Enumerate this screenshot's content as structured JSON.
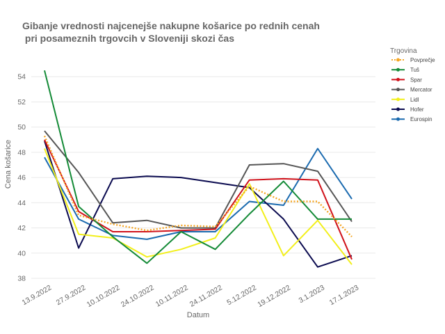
{
  "chart_data": {
    "type": "line",
    "title_line1": "Gibanje vrednosti najcenejše nakupne košarice  po rednih cenah",
    "title_line2": " pri posameznih trgovcih v Sloveniji skozi čas",
    "xlabel": "Datum",
    "ylabel": "Cena košarice",
    "ylim": [
      38,
      56
    ],
    "yticks": [
      38,
      40,
      42,
      44,
      46,
      48,
      50,
      52,
      54
    ],
    "grid": true,
    "legend_title": "Trgovina",
    "legend_position": "right",
    "categories": [
      "13.9.2022",
      "27.9.2022",
      "10.10.2022",
      "24.10.2022",
      "10.11.2022",
      "24.11.2022",
      "5.12.2022",
      "19.12.2022",
      "3.1.2023",
      "17.1.2023"
    ],
    "series": [
      {
        "name": "Povprečje",
        "color": "#F5A623",
        "dashed": true,
        "values": [
          49.3,
          43.0,
          42.3,
          41.8,
          42.2,
          42.1,
          45.3,
          44.1,
          44.1,
          41.3
        ]
      },
      {
        "name": "Tuš",
        "color": "#138A36",
        "dashed": false,
        "values": [
          54.5,
          43.7,
          41.3,
          39.2,
          41.7,
          40.3,
          43.1,
          45.7,
          42.7,
          42.7
        ]
      },
      {
        "name": "Spar",
        "color": "#D0121B",
        "dashed": false,
        "values": [
          49.0,
          43.3,
          41.7,
          41.7,
          41.8,
          41.9,
          45.8,
          45.9,
          45.8,
          39.5
        ]
      },
      {
        "name": "Mercator",
        "color": "#555555",
        "dashed": false,
        "values": [
          49.7,
          46.4,
          42.4,
          42.6,
          42.0,
          42.0,
          47.0,
          47.1,
          46.5,
          42.5
        ]
      },
      {
        "name": "Lidl",
        "color": "#F2EF1A",
        "dashed": false,
        "values": [
          48.3,
          41.5,
          41.2,
          39.7,
          40.3,
          41.2,
          45.5,
          39.8,
          42.6,
          39.1
        ]
      },
      {
        "name": "Hofer",
        "color": "#0A0A4F",
        "dashed": false,
        "values": [
          48.9,
          40.4,
          45.9,
          46.1,
          46.0,
          45.6,
          45.2,
          42.7,
          38.9,
          39.8
        ]
      },
      {
        "name": "Eurospin",
        "color": "#1A6AAF",
        "dashed": false,
        "values": [
          47.6,
          42.7,
          41.4,
          41.1,
          41.7,
          41.7,
          44.1,
          43.8,
          48.3,
          44.3
        ]
      }
    ]
  }
}
